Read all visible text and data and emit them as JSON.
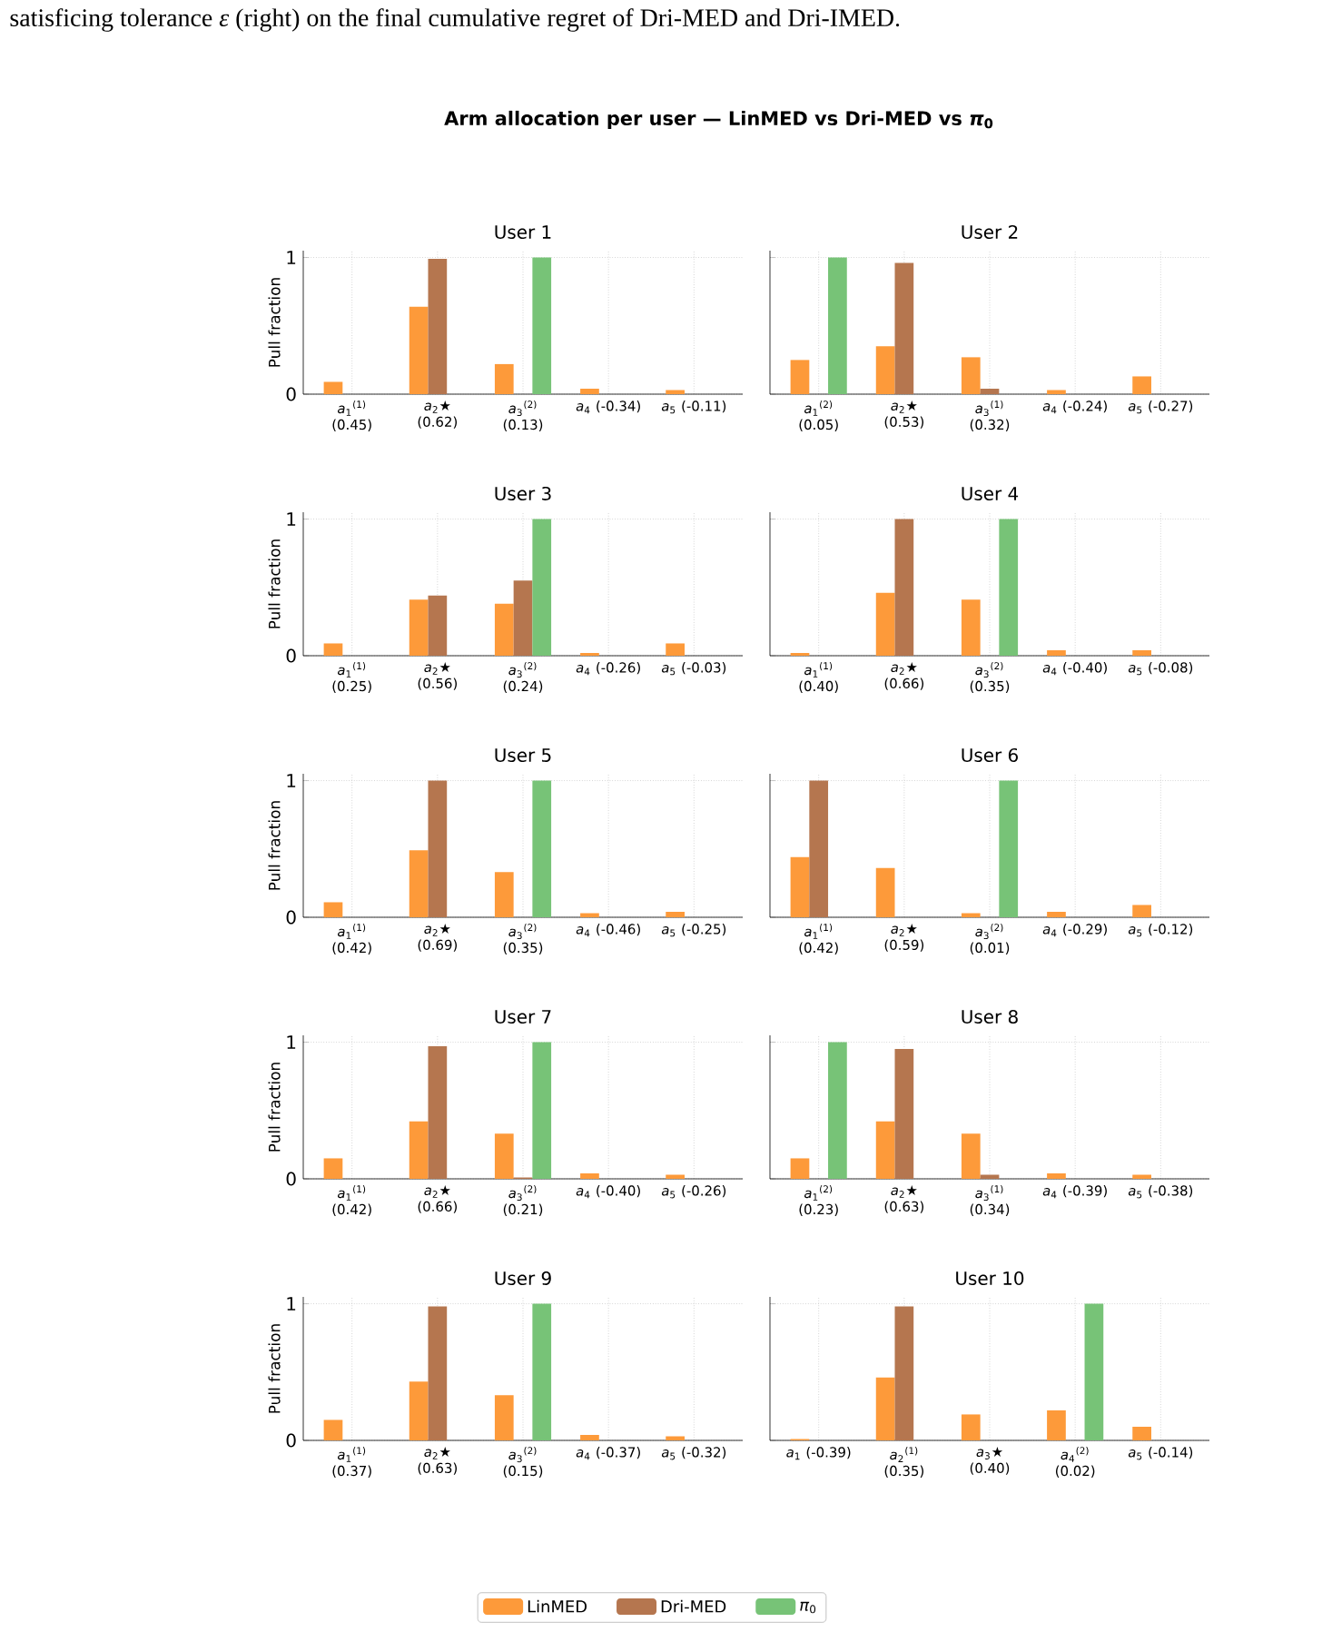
{
  "chart_data": [
    {
      "type": "other",
      "title": "Arm allocation per user  —  LinMED vs Dri-MED vs *π*$_{0}$",
      "annotations": [
        "satisficing tolerance *ε* (right) on the final cumulative regret of Dri-MED and Dri-IMED."
      ]
    },
    {
      "type": "bar",
      "title": "User 1",
      "ylabel": "Pull fraction",
      "categories": [
        "*a*$_{1}$$^{(1)}$ (0.45)",
        "*a*$_{2}$★ (0.62)",
        "*a*$_{3}$$^{(2)}$ (0.13)",
        "*a*$_{4}$ (-0.34)",
        "*a*$_{5}$ (-0.11)"
      ],
      "ylim": [
        0,
        1.05
      ],
      "yticks": [
        0,
        1
      ],
      "grid": true,
      "series": [
        {
          "color": "#fd9a3a",
          "values": [
            0.09,
            0.64,
            0.22,
            0.04,
            0.03
          ]
        },
        {
          "color": "#b5764f",
          "values": [
            0,
            0.99,
            0,
            0,
            0
          ]
        },
        {
          "color": "#77c377",
          "values": [
            0,
            0,
            1,
            0,
            0
          ]
        }
      ]
    },
    {
      "type": "bar",
      "title": "User 2",
      "tick_labels": "x",
      "categories": [
        "*a*$_{1}$$^{(2)}$ (0.05)",
        "*a*$_{2}$★ (0.53)",
        "*a*$_{3}$$^{(1)}$ (0.32)",
        "*a*$_{4}$ (-0.24)",
        "*a*$_{5}$ (-0.27)"
      ],
      "ylim": [
        0,
        1.05
      ],
      "yticks": [
        0,
        1
      ],
      "grid": true,
      "series": [
        {
          "color": "#fd9a3a",
          "values": [
            0.25,
            0.35,
            0.27,
            0.03,
            0.13
          ]
        },
        {
          "color": "#b5764f",
          "values": [
            0,
            0.96,
            0.04,
            0,
            0
          ]
        },
        {
          "color": "#77c377",
          "values": [
            1,
            0,
            0,
            0,
            0
          ]
        }
      ]
    },
    {
      "type": "bar",
      "title": "User 3",
      "ylabel": "Pull fraction",
      "categories": [
        "*a*$_{1}$$^{(1)}$ (0.25)",
        "*a*$_{2}$★ (0.56)",
        "*a*$_{3}$$^{(2)}$ (0.24)",
        "*a*$_{4}$ (-0.26)",
        "*a*$_{5}$ (-0.03)"
      ],
      "ylim": [
        0,
        1.05
      ],
      "yticks": [
        0,
        1
      ],
      "grid": true,
      "series": [
        {
          "color": "#fd9a3a",
          "values": [
            0.09,
            0.41,
            0.38,
            0.02,
            0.09
          ]
        },
        {
          "color": "#b5764f",
          "values": [
            0,
            0.44,
            0.55,
            0,
            0
          ]
        },
        {
          "color": "#77c377",
          "values": [
            0,
            0,
            1,
            0,
            0
          ]
        }
      ]
    },
    {
      "type": "bar",
      "title": "User 4",
      "tick_labels": "x",
      "categories": [
        "*a*$_{1}$$^{(1)}$ (0.40)",
        "*a*$_{2}$★ (0.66)",
        "*a*$_{3}$$^{(2)}$ (0.35)",
        "*a*$_{4}$ (-0.40)",
        "*a*$_{5}$ (-0.08)"
      ],
      "ylim": [
        0,
        1.05
      ],
      "yticks": [
        0,
        1
      ],
      "grid": true,
      "series": [
        {
          "color": "#fd9a3a",
          "values": [
            0.02,
            0.46,
            0.41,
            0.04,
            0.04
          ]
        },
        {
          "color": "#b5764f",
          "values": [
            0,
            1,
            0,
            0,
            0
          ]
        },
        {
          "color": "#77c377",
          "values": [
            0,
            0,
            1,
            0,
            0
          ]
        }
      ]
    },
    {
      "type": "bar",
      "title": "User 5",
      "ylabel": "Pull fraction",
      "categories": [
        "*a*$_{1}$$^{(1)}$ (0.42)",
        "*a*$_{2}$★ (0.69)",
        "*a*$_{3}$$^{(2)}$ (0.35)",
        "*a*$_{4}$ (-0.46)",
        "*a*$_{5}$ (-0.25)"
      ],
      "ylim": [
        0,
        1.05
      ],
      "yticks": [
        0,
        1
      ],
      "grid": true,
      "series": [
        {
          "color": "#fd9a3a",
          "values": [
            0.11,
            0.49,
            0.33,
            0.03,
            0.04
          ]
        },
        {
          "color": "#b5764f",
          "values": [
            0,
            1,
            0,
            0,
            0
          ]
        },
        {
          "color": "#77c377",
          "values": [
            0,
            0,
            1,
            0,
            0
          ]
        }
      ]
    },
    {
      "type": "bar",
      "title": "User 6",
      "tick_labels": "x",
      "categories": [
        "*a*$_{1}$$^{(1)}$ (0.42)",
        "*a*$_{2}$★ (0.59)",
        "*a*$_{3}$$^{(2)}$ (0.01)",
        "*a*$_{4}$ (-0.29)",
        "*a*$_{5}$ (-0.12)"
      ],
      "ylim": [
        0,
        1.05
      ],
      "yticks": [
        0,
        1
      ],
      "grid": true,
      "series": [
        {
          "color": "#fd9a3a",
          "values": [
            0.44,
            0.36,
            0.03,
            0.04,
            0.09
          ]
        },
        {
          "color": "#b5764f",
          "values": [
            1,
            0,
            0,
            0,
            0
          ]
        },
        {
          "color": "#77c377",
          "values": [
            0,
            0,
            1,
            0,
            0
          ]
        }
      ]
    },
    {
      "type": "bar",
      "title": "User 7",
      "ylabel": "Pull fraction",
      "categories": [
        "*a*$_{1}$$^{(1)}$ (0.42)",
        "*a*$_{2}$★ (0.66)",
        "*a*$_{3}$$^{(2)}$ (0.21)",
        "*a*$_{4}$ (-0.40)",
        "*a*$_{5}$ (-0.26)"
      ],
      "ylim": [
        0,
        1.05
      ],
      "yticks": [
        0,
        1
      ],
      "grid": true,
      "series": [
        {
          "color": "#fd9a3a",
          "values": [
            0.15,
            0.42,
            0.33,
            0.04,
            0.03
          ]
        },
        {
          "color": "#b5764f",
          "values": [
            0,
            0.97,
            0.01,
            0,
            0
          ]
        },
        {
          "color": "#77c377",
          "values": [
            0,
            0,
            1,
            0,
            0
          ]
        }
      ]
    },
    {
      "type": "bar",
      "title": "User 8",
      "tick_labels": "x",
      "categories": [
        "*a*$_{1}$$^{(2)}$ (0.23)",
        "*a*$_{2}$★ (0.63)",
        "*a*$_{3}$$^{(1)}$ (0.34)",
        "*a*$_{4}$ (-0.39)",
        "*a*$_{5}$ (-0.38)"
      ],
      "ylim": [
        0,
        1.05
      ],
      "yticks": [
        0,
        1
      ],
      "grid": true,
      "series": [
        {
          "color": "#fd9a3a",
          "values": [
            0.15,
            0.42,
            0.33,
            0.04,
            0.03
          ]
        },
        {
          "color": "#b5764f",
          "values": [
            0,
            0.95,
            0.03,
            0,
            0
          ]
        },
        {
          "color": "#77c377",
          "values": [
            1,
            0,
            0,
            0,
            0
          ]
        }
      ]
    },
    {
      "type": "bar",
      "title": "User 9",
      "ylabel": "Pull fraction",
      "categories": [
        "*a*$_{1}$$^{(1)}$ (0.37)",
        "*a*$_{2}$★ (0.63)",
        "*a*$_{3}$$^{(2)}$ (0.15)",
        "*a*$_{4}$ (-0.37)",
        "*a*$_{5}$ (-0.32)"
      ],
      "ylim": [
        0,
        1.05
      ],
      "yticks": [
        0,
        1
      ],
      "grid": true,
      "series": [
        {
          "color": "#fd9a3a",
          "values": [
            0.15,
            0.43,
            0.33,
            0.04,
            0.03
          ]
        },
        {
          "color": "#b5764f",
          "values": [
            0,
            0.98,
            0,
            0,
            0
          ]
        },
        {
          "color": "#77c377",
          "values": [
            0,
            0,
            1,
            0,
            0
          ]
        }
      ]
    },
    {
      "type": "bar",
      "title": "User 10",
      "tick_labels": "x",
      "legend": "bottom",
      "categories": [
        "*a*$_{1}$ (-0.39)",
        "*a*$_{2}$$^{(1)}$ (0.35)",
        "*a*$_{3}$★ (0.40)",
        "*a*$_{4}$$^{(2)}$ (0.02)",
        "*a*$_{5}$ (-0.14)"
      ],
      "ylim": [
        0,
        1.05
      ],
      "yticks": [
        0,
        1
      ],
      "grid": true,
      "series": [
        {
          "name": "LinMED",
          "color": "#fd9a3a",
          "values": [
            0.01,
            0.46,
            0.19,
            0.22,
            0.1
          ]
        },
        {
          "name": "Dri-MED",
          "color": "#b5764f",
          "values": [
            0,
            0.98,
            0,
            0,
            0
          ]
        },
        {
          "name": "*π*$_{0}$",
          "color": "#77c377",
          "values": [
            0,
            0,
            0,
            1,
            0
          ]
        }
      ]
    }
  ]
}
